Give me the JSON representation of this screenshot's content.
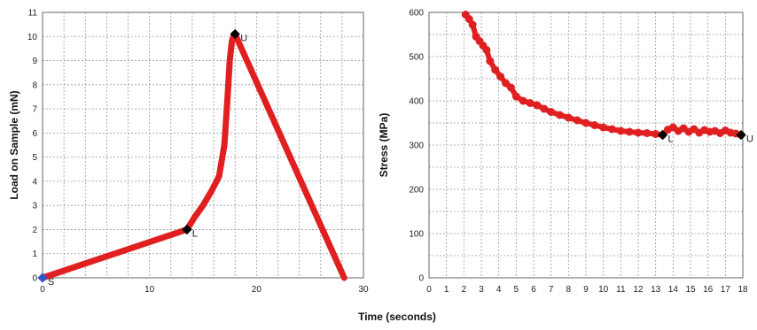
{
  "chart_data": [
    {
      "type": "line",
      "xlabel": "Time (seconds)",
      "ylabel": "Load on Sample (mN)",
      "xlim": [
        0,
        30
      ],
      "ylim": [
        0,
        11
      ],
      "xticks": [
        "0",
        "10",
        "20",
        "30"
      ],
      "yticks": [
        "0",
        "1",
        "2",
        "3",
        "4",
        "5",
        "6",
        "7",
        "8",
        "9",
        "10",
        "11"
      ],
      "grid": true,
      "series": [
        {
          "color": "#e02020",
          "x": [
            0,
            13.5,
            14.2,
            15.0,
            15.8,
            16.5,
            17.0,
            17.3,
            17.5,
            17.7,
            17.9,
            18.1,
            28.2
          ],
          "y": [
            0,
            2.0,
            2.5,
            3.0,
            3.6,
            4.2,
            5.5,
            7.5,
            9.0,
            9.8,
            10.1,
            10.0,
            0
          ]
        }
      ],
      "markers": [
        {
          "label": "S",
          "x": 0,
          "y": 0,
          "color": "#3355cc"
        },
        {
          "label": "L",
          "x": 13.5,
          "y": 2.0,
          "color": "#000000"
        },
        {
          "label": "U",
          "x": 18.0,
          "y": 10.1,
          "color": "#000000"
        }
      ]
    },
    {
      "type": "scatter",
      "xlabel": "Time (seconds)",
      "ylabel": "Stress (MPa)",
      "xlim": [
        0,
        18
      ],
      "ylim": [
        0,
        600
      ],
      "xticks": [
        "0",
        "1",
        "2",
        "3",
        "4",
        "5",
        "6",
        "7",
        "8",
        "9",
        "10",
        "11",
        "12",
        "13",
        "14",
        "15",
        "16",
        "17",
        "18"
      ],
      "yticks": [
        "0",
        "100",
        "200",
        "300",
        "400",
        "500",
        "600"
      ],
      "grid": true,
      "series": [
        {
          "color": "#e02020",
          "x": [
            2.1,
            2.3,
            2.5,
            2.7,
            2.9,
            3.1,
            3.3,
            3.5,
            3.8,
            4.1,
            4.4,
            4.7,
            5.0,
            5.4,
            5.8,
            6.2,
            6.6,
            7.0,
            7.5,
            8.0,
            8.5,
            9.0,
            9.5,
            10.0,
            10.5,
            11.0,
            11.5,
            12.0,
            12.5,
            13.0,
            13.4,
            13.7,
            14.0,
            14.3,
            14.6,
            14.9,
            15.2,
            15.5,
            15.8,
            16.1,
            16.4,
            16.7,
            17.0,
            17.3,
            17.6,
            17.9
          ],
          "y": [
            595,
            585,
            572,
            545,
            535,
            525,
            515,
            490,
            470,
            455,
            440,
            430,
            410,
            400,
            395,
            390,
            382,
            375,
            368,
            362,
            356,
            350,
            345,
            340,
            336,
            332,
            330,
            328,
            327,
            325,
            323,
            335,
            340,
            332,
            338,
            330,
            336,
            328,
            334,
            330,
            332,
            327,
            333,
            328,
            326,
            323
          ]
        }
      ],
      "markers": [
        {
          "label": "L",
          "x": 13.4,
          "y": 323,
          "color": "#000000"
        },
        {
          "label": "U",
          "x": 17.9,
          "y": 323,
          "color": "#000000"
        }
      ]
    }
  ],
  "xlabel_shared": "Time (seconds)"
}
